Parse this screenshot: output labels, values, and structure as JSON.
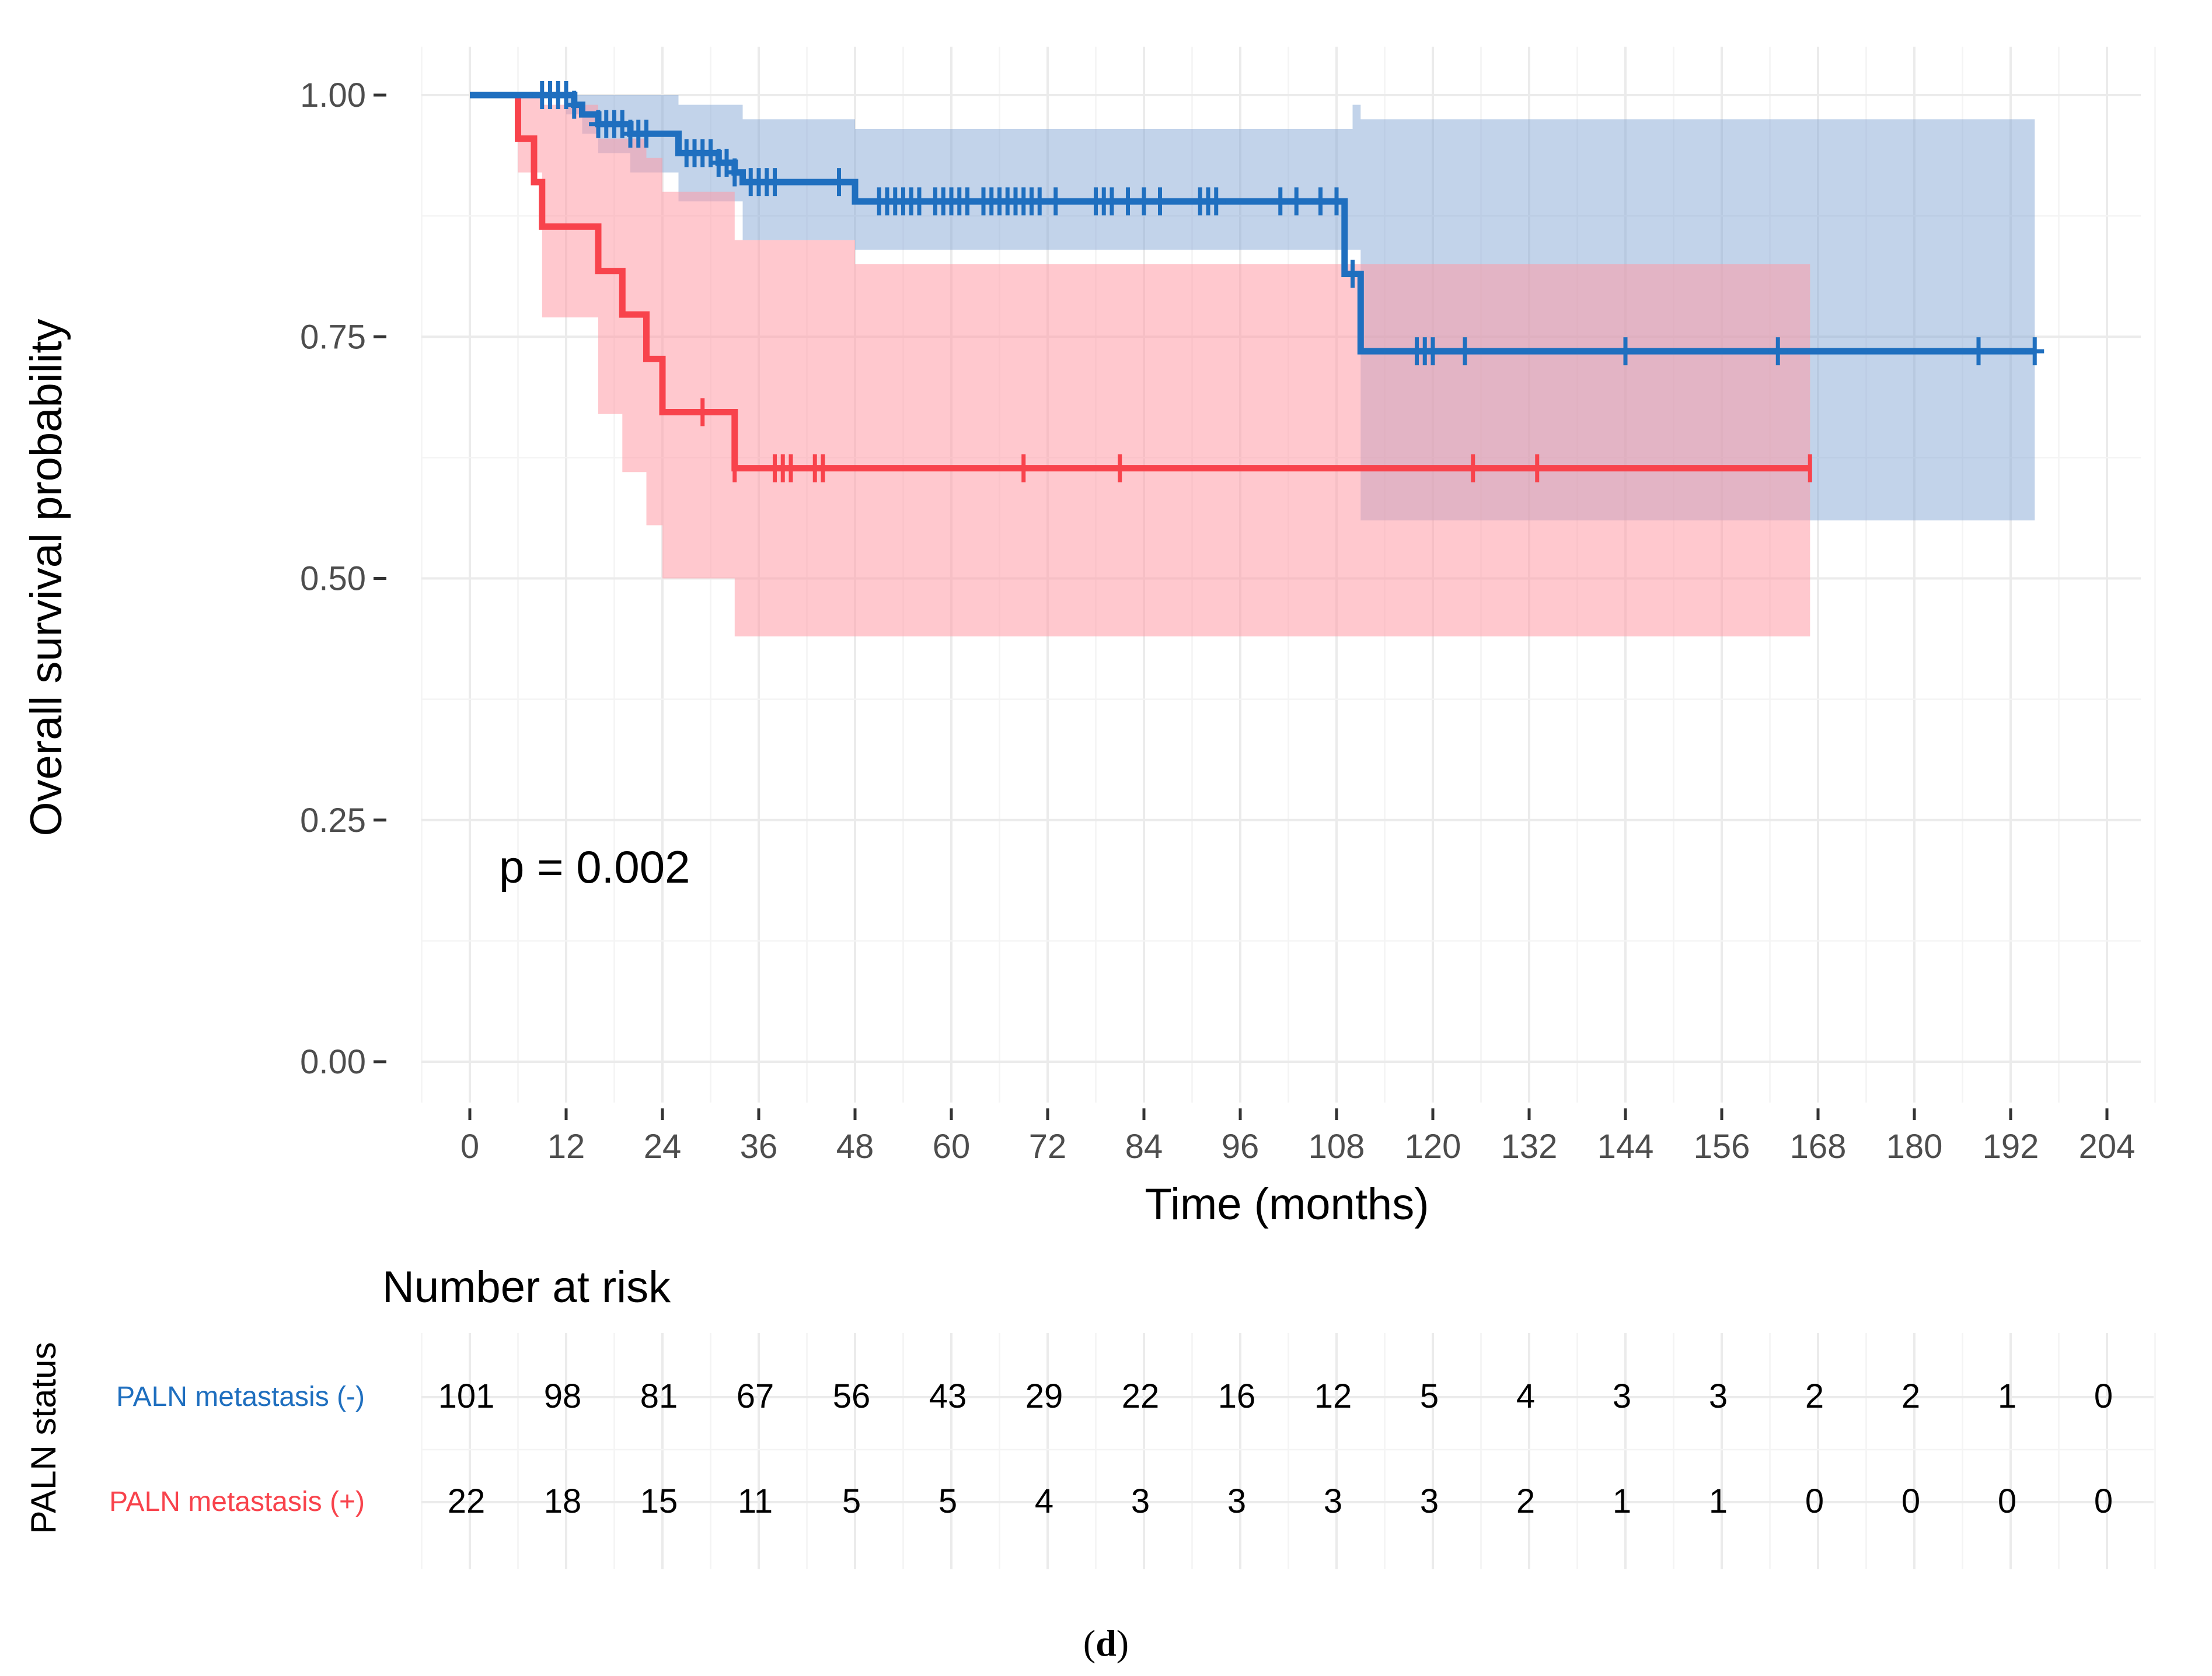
{
  "chart_data": {
    "type": "line",
    "subtype": "kaplan-meier",
    "xlabel": "Time (months)",
    "ylabel": "Overall survival probability",
    "xlim": [
      -5,
      210
    ],
    "ylim": [
      0,
      1
    ],
    "x_ticks": [
      "0",
      "12",
      "24",
      "36",
      "48",
      "60",
      "72",
      "84",
      "96",
      "108",
      "120",
      "132",
      "144",
      "156",
      "168",
      "180",
      "192",
      "204"
    ],
    "x_tick_values": [
      0,
      12,
      24,
      36,
      48,
      60,
      72,
      84,
      96,
      108,
      120,
      132,
      144,
      156,
      168,
      180,
      192,
      204
    ],
    "y_ticks": [
      "0.00",
      "0.25",
      "0.50",
      "0.75",
      "1.00"
    ],
    "y_tick_values": [
      0,
      0.25,
      0.5,
      0.75,
      1.0
    ],
    "p_value_text": "p = 0.002",
    "series": [
      {
        "name": "PALN metastasis (-)",
        "color": "#1f6fbf",
        "band_color": "#7fa2d4",
        "steps": [
          [
            0,
            1.0
          ],
          [
            12,
            1.0
          ],
          [
            13,
            0.99
          ],
          [
            14,
            0.98
          ],
          [
            16,
            0.97
          ],
          [
            20,
            0.96
          ],
          [
            26,
            0.94
          ],
          [
            31,
            0.93
          ],
          [
            33,
            0.92
          ],
          [
            34,
            0.91
          ],
          [
            48,
            0.89
          ],
          [
            109,
            0.89
          ],
          [
            109,
            0.815
          ],
          [
            111,
            0.815
          ],
          [
            111,
            0.735
          ],
          [
            195,
            0.735
          ]
        ],
        "ci_lower": [
          [
            0,
            1.0
          ],
          [
            12,
            0.98
          ],
          [
            14,
            0.96
          ],
          [
            16,
            0.94
          ],
          [
            20,
            0.92
          ],
          [
            26,
            0.89
          ],
          [
            34,
            0.85
          ],
          [
            48,
            0.84
          ],
          [
            109,
            0.84
          ],
          [
            111,
            0.56
          ],
          [
            195,
            0.56
          ]
        ],
        "ci_upper": [
          [
            0,
            1.0
          ],
          [
            12,
            1.0
          ],
          [
            26,
            0.99
          ],
          [
            34,
            0.975
          ],
          [
            48,
            0.965
          ],
          [
            109,
            0.965
          ],
          [
            110,
            0.99
          ],
          [
            111,
            0.975
          ],
          [
            195,
            0.975
          ]
        ],
        "censor_times": [
          9,
          10,
          11,
          12,
          13,
          16,
          17,
          18,
          19,
          20,
          21,
          22,
          27,
          28,
          29,
          30,
          31,
          32,
          33,
          35,
          36,
          37,
          38,
          46,
          51,
          52,
          53,
          54,
          55,
          56,
          58,
          59,
          60,
          61,
          62,
          64,
          65,
          66,
          67,
          68,
          69,
          70,
          71,
          73,
          78,
          79,
          80,
          82,
          84,
          86,
          91,
          92,
          93,
          101,
          103,
          106,
          108,
          110,
          118,
          119,
          120,
          124,
          144,
          163,
          188,
          195
        ],
        "at_risk": [
          "101",
          "98",
          "81",
          "67",
          "56",
          "43",
          "29",
          "22",
          "16",
          "12",
          "5",
          "4",
          "3",
          "3",
          "2",
          "2",
          "1",
          "0"
        ]
      },
      {
        "name": "PALN metastasis (+)",
        "color": "#f8434c",
        "band_color": "#ff9aa5",
        "steps": [
          [
            0,
            1.0
          ],
          [
            6,
            1.0
          ],
          [
            6,
            0.955
          ],
          [
            8,
            0.91
          ],
          [
            9,
            0.864
          ],
          [
            16,
            0.818
          ],
          [
            19,
            0.773
          ],
          [
            22,
            0.727
          ],
          [
            24,
            0.672
          ],
          [
            33,
            0.614
          ],
          [
            167,
            0.614
          ]
        ],
        "ci_lower": [
          [
            0,
            1.0
          ],
          [
            6,
            0.92
          ],
          [
            9,
            0.77
          ],
          [
            16,
            0.67
          ],
          [
            19,
            0.61
          ],
          [
            22,
            0.555
          ],
          [
            24,
            0.5
          ],
          [
            33,
            0.44
          ],
          [
            167,
            0.44
          ]
        ],
        "ci_upper": [
          [
            0,
            1.0
          ],
          [
            9,
            0.99
          ],
          [
            16,
            0.955
          ],
          [
            22,
            0.935
          ],
          [
            24,
            0.9
          ],
          [
            33,
            0.85
          ],
          [
            36,
            0.85
          ],
          [
            48,
            0.825
          ],
          [
            167,
            0.825
          ]
        ],
        "censor_times": [
          29,
          33,
          38,
          39,
          40,
          43,
          44,
          69,
          81,
          125,
          133,
          167
        ],
        "at_risk": [
          "22",
          "18",
          "15",
          "11",
          "5",
          "5",
          "4",
          "3",
          "3",
          "3",
          "3",
          "2",
          "1",
          "1",
          "0",
          "0",
          "0",
          "0"
        ]
      }
    ],
    "risk_table": {
      "title": "Number at risk",
      "strata_title": "PALN status",
      "rows": [
        {
          "label": "PALN metastasis (-)",
          "color": "#1f6fbf"
        },
        {
          "label": "PALN metastasis (+)",
          "color": "#f8434c"
        }
      ]
    },
    "panel_label": [
      "(",
      "d",
      ")"
    ]
  }
}
